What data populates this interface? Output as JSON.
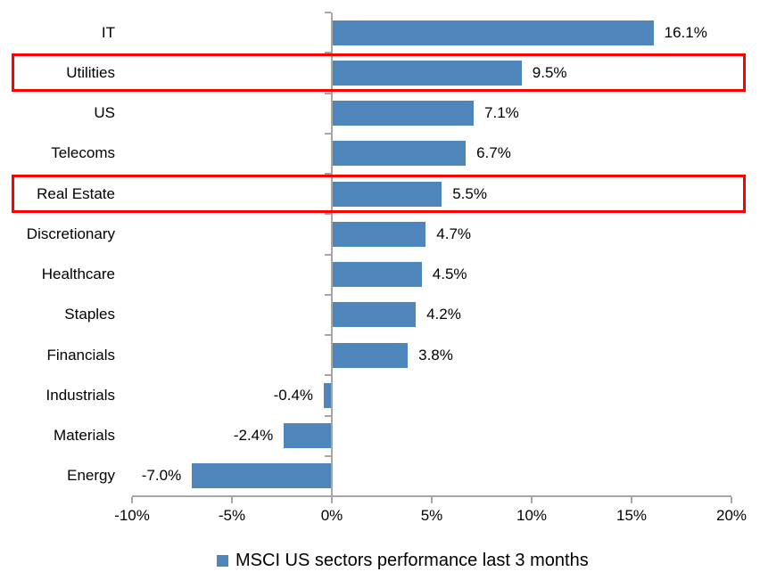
{
  "chart_data": {
    "type": "bar",
    "orientation": "horizontal",
    "title": "",
    "categories": [
      "IT",
      "Utilities",
      "US",
      "Telecoms",
      "Real Estate",
      "Discretionary",
      "Healthcare",
      "Staples",
      "Financials",
      "Industrials",
      "Materials",
      "Energy"
    ],
    "values": [
      16.1,
      9.5,
      7.1,
      6.7,
      5.5,
      4.7,
      4.5,
      4.2,
      3.8,
      -0.4,
      -2.4,
      -7.0
    ],
    "data_labels": [
      "16.1%",
      "9.5%",
      "7.1%",
      "6.7%",
      "5.5%",
      "4.7%",
      "4.5%",
      "4.2%",
      "3.8%",
      "-0.4%",
      "-2.4%",
      "-7.0%"
    ],
    "highlighted_categories": [
      "Utilities",
      "Real Estate"
    ],
    "x_axis": {
      "min": -10,
      "max": 20,
      "tick_step": 5,
      "tick_labels": [
        "-10%",
        "-5%",
        "0%",
        "5%",
        "10%",
        "15%",
        "20%"
      ]
    },
    "grid": false,
    "legend": {
      "position": "bottom",
      "marker": "square",
      "label": "MSCI US sectors performance last 3 months"
    },
    "colors": {
      "bar": "#4e86bc",
      "highlight_border": "#ff0000",
      "axis": "#a6a6a6",
      "text": "#000000",
      "background": "#ffffff"
    }
  }
}
